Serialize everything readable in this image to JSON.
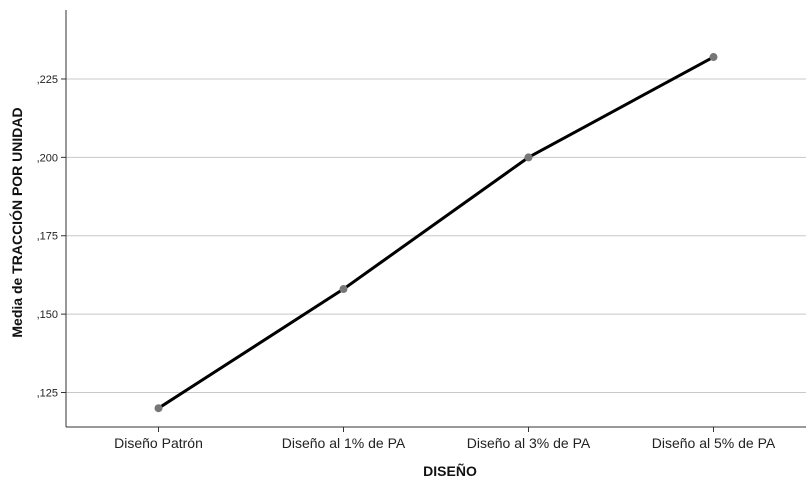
{
  "chart_data": {
    "type": "line",
    "title": "",
    "xlabel": "DISEÑO",
    "ylabel": "Media de TRACCIÓN POR UNIDAD",
    "categories": [
      "Diseño Patrón",
      "Diseño al 1% de PA",
      "Diseño al 3% de PA",
      "Diseño al 5% de PA"
    ],
    "series": [
      {
        "values": [
          0.12,
          0.158,
          0.2,
          0.232
        ]
      }
    ],
    "yticks": [
      0.125,
      0.15,
      0.175,
      0.2,
      0.225
    ],
    "ytick_labels": [
      ",125",
      ",150",
      ",175",
      ",200",
      ",225"
    ],
    "ylim": [
      0.114,
      0.247
    ],
    "grid": true,
    "legend": "none",
    "colors": {
      "line": "#000000",
      "marker": "#777777",
      "grid": "#c8c8c8",
      "axis": "#333333"
    }
  }
}
